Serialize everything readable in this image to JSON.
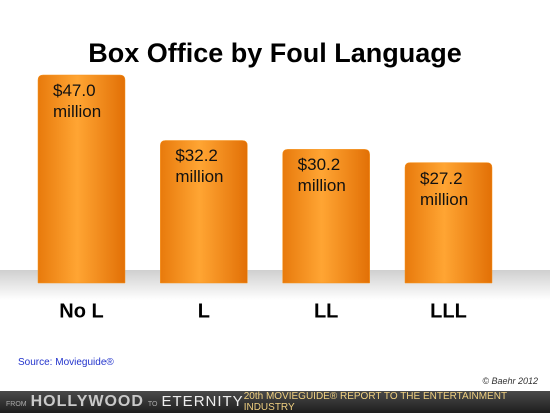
{
  "chart_data": {
    "type": "bar",
    "title": "Box Office by Foul Language",
    "categories": [
      "No L",
      "L",
      "LL",
      "LLL"
    ],
    "values": [
      47.0,
      32.2,
      30.2,
      27.2
    ],
    "value_labels": [
      "$47.0 million",
      "$32.2 million",
      "$30.2 million",
      "$27.2 million"
    ],
    "color": "#f7941d"
  },
  "source": "Source: Movieguide®",
  "credit": "© Baehr 2012",
  "footer": {
    "left": [
      "FROM",
      "HOLLYWOOD",
      "TO",
      "ETERNITY"
    ],
    "right": "20th MOVIEGUIDE® REPORT TO THE ENTERTAINMENT INDUSTRY"
  }
}
